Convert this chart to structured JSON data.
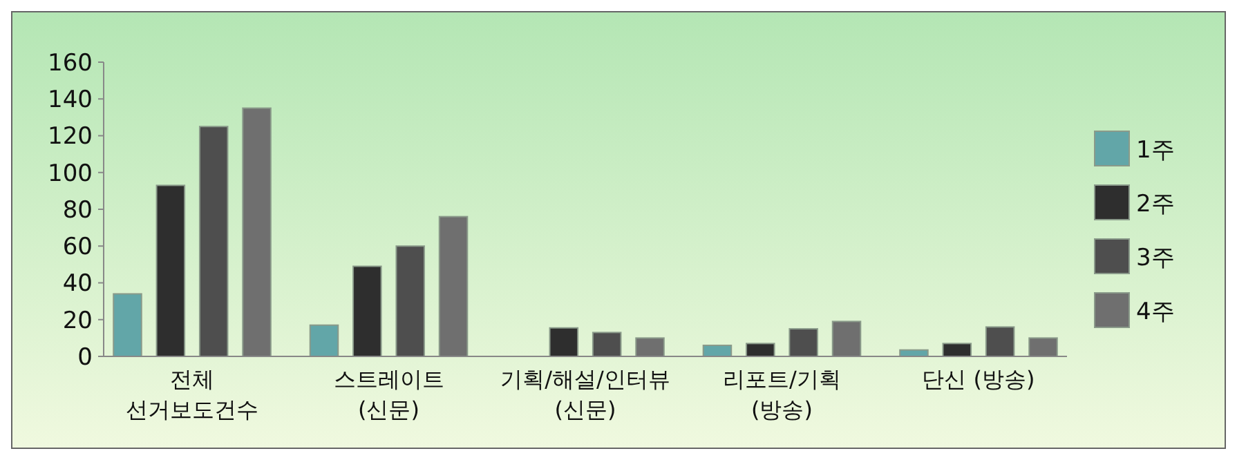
{
  "chart_data": {
    "type": "bar",
    "categories": [
      "전체\n선거보도건수",
      "스트레이트\n(신문)",
      "기획/해설/인터뷰\n(신문)",
      "리포트/기획\n(방송)",
      "단신 (방송)"
    ],
    "series": [
      {
        "name": "1주",
        "color": "#62a6a8",
        "values": [
          34,
          17,
          0,
          6,
          3.5
        ]
      },
      {
        "name": "2주",
        "color": "#2e2e2e",
        "values": [
          93,
          49,
          15.5,
          7,
          7
        ]
      },
      {
        "name": "3주",
        "color": "#4e4e4e",
        "values": [
          125,
          60,
          13,
          15,
          16
        ]
      },
      {
        "name": "4주",
        "color": "#6f6f6f",
        "values": [
          135,
          76,
          10,
          19,
          10
        ]
      }
    ],
    "ylim": [
      0,
      160
    ],
    "yticks": [
      0,
      20,
      40,
      60,
      80,
      100,
      120,
      140,
      160
    ],
    "grid": false,
    "legend": "right"
  }
}
